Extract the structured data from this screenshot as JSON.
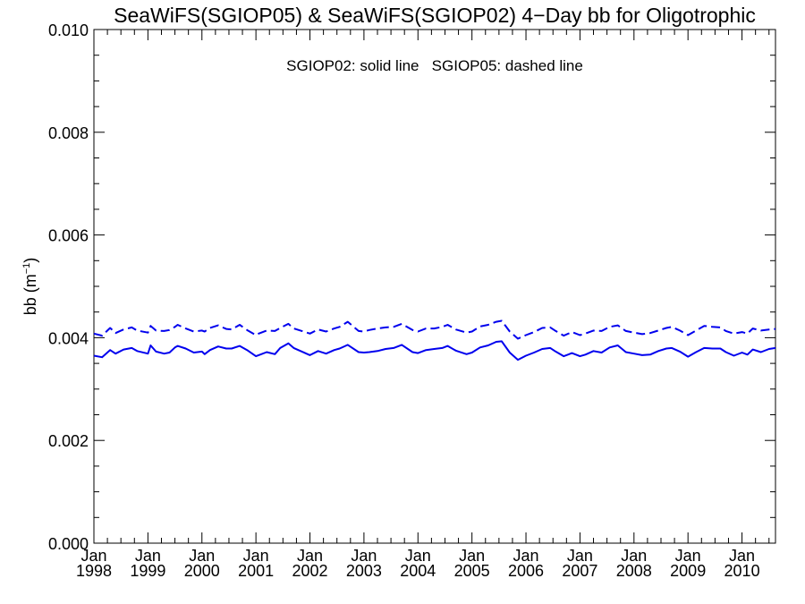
{
  "colors": {
    "series": "#0000ee",
    "axis": "#000000",
    "background": "#ffffff"
  },
  "chart_data": {
    "type": "line",
    "title": "SeaWiFS(SGIOP05) & SeaWiFS(SGIOP02) 4−Day bb for Oligotrophic",
    "xlabel": "",
    "ylabel": "bb (m",
    "ylabel_sup": "−1",
    "ylabel_close": ")",
    "annotation": "SGIOP02: solid line   SGIOP05: dashed line",
    "xlim": [
      1998.0,
      2010.62
    ],
    "ylim": [
      0.0,
      0.01
    ],
    "yticks": [
      "0.000",
      "0.002",
      "0.004",
      "0.006",
      "0.008",
      "0.010"
    ],
    "xticks": [
      {
        "month": "Jan",
        "year": "1998"
      },
      {
        "month": "Jan",
        "year": "1999"
      },
      {
        "month": "Jan",
        "year": "2000"
      },
      {
        "month": "Jan",
        "year": "2001"
      },
      {
        "month": "Jan",
        "year": "2002"
      },
      {
        "month": "Jan",
        "year": "2003"
      },
      {
        "month": "Jan",
        "year": "2004"
      },
      {
        "month": "Jan",
        "year": "2005"
      },
      {
        "month": "Jan",
        "year": "2006"
      },
      {
        "month": "Jan",
        "year": "2007"
      },
      {
        "month": "Jan",
        "year": "2008"
      },
      {
        "month": "Jan",
        "year": "2009"
      },
      {
        "month": "Jan",
        "year": "2010"
      }
    ],
    "grid": false,
    "series": [
      {
        "name": "SGIOP02",
        "style": "solid",
        "x": [
          1998.0,
          1998.15,
          1998.3,
          1998.4,
          1998.55,
          1998.7,
          1998.8,
          1999.0,
          1999.05,
          1999.15,
          1999.3,
          1999.4,
          1999.5,
          1999.55,
          1999.7,
          1999.85,
          2000.0,
          2000.05,
          2000.15,
          2000.3,
          2000.45,
          2000.55,
          2000.7,
          2000.85,
          2001.0,
          2001.05,
          2001.2,
          2001.35,
          2001.45,
          2001.6,
          2001.7,
          2001.85,
          2002.0,
          2002.15,
          2002.3,
          2002.45,
          2002.55,
          2002.7,
          2002.9,
          2003.0,
          2003.1,
          2003.25,
          2003.4,
          2003.55,
          2003.7,
          2003.9,
          2004.0,
          2004.15,
          2004.3,
          2004.45,
          2004.55,
          2004.7,
          2004.9,
          2005.0,
          2005.15,
          2005.3,
          2005.45,
          2005.55,
          2005.7,
          2005.85,
          2006.0,
          2006.15,
          2006.3,
          2006.45,
          2006.55,
          2006.7,
          2006.85,
          2007.0,
          2007.1,
          2007.25,
          2007.4,
          2007.55,
          2007.7,
          2007.85,
          2008.0,
          2008.15,
          2008.3,
          2008.45,
          2008.6,
          2008.7,
          2008.85,
          2009.0,
          2009.15,
          2009.3,
          2009.45,
          2009.6,
          2009.7,
          2009.85,
          2010.0,
          2010.1,
          2010.2,
          2010.35,
          2010.5,
          2010.62
        ],
        "y": [
          0.00365,
          0.00362,
          0.00376,
          0.00369,
          0.00377,
          0.0038,
          0.00374,
          0.00369,
          0.00385,
          0.00373,
          0.00369,
          0.00371,
          0.00381,
          0.00384,
          0.00379,
          0.00371,
          0.00373,
          0.00368,
          0.00376,
          0.00383,
          0.00379,
          0.00379,
          0.00384,
          0.00375,
          0.00364,
          0.00366,
          0.00372,
          0.00368,
          0.0038,
          0.00389,
          0.0038,
          0.00373,
          0.00366,
          0.00374,
          0.00369,
          0.00376,
          0.00379,
          0.00386,
          0.00372,
          0.00371,
          0.00372,
          0.00374,
          0.00378,
          0.0038,
          0.00386,
          0.00372,
          0.0037,
          0.00376,
          0.00378,
          0.0038,
          0.00384,
          0.00375,
          0.00368,
          0.00371,
          0.00381,
          0.00385,
          0.00392,
          0.00393,
          0.00371,
          0.00357,
          0.00365,
          0.00371,
          0.00378,
          0.0038,
          0.00373,
          0.00364,
          0.0037,
          0.00364,
          0.00367,
          0.00374,
          0.00371,
          0.00381,
          0.00385,
          0.00372,
          0.00369,
          0.00366,
          0.00367,
          0.00374,
          0.00379,
          0.0038,
          0.00373,
          0.00363,
          0.00372,
          0.0038,
          0.00379,
          0.00379,
          0.00372,
          0.00365,
          0.00371,
          0.00367,
          0.00377,
          0.00372,
          0.00378,
          0.0038
        ]
      },
      {
        "name": "SGIOP05",
        "style": "dashed",
        "x": [
          1998.0,
          1998.15,
          1998.3,
          1998.4,
          1998.55,
          1998.7,
          1998.8,
          1999.0,
          1999.05,
          1999.15,
          1999.3,
          1999.4,
          1999.5,
          1999.55,
          1999.7,
          1999.85,
          2000.0,
          2000.05,
          2000.15,
          2000.3,
          2000.45,
          2000.55,
          2000.7,
          2000.85,
          2001.0,
          2001.05,
          2001.2,
          2001.35,
          2001.45,
          2001.6,
          2001.7,
          2001.85,
          2002.0,
          2002.15,
          2002.3,
          2002.45,
          2002.55,
          2002.7,
          2002.9,
          2003.0,
          2003.1,
          2003.25,
          2003.4,
          2003.55,
          2003.7,
          2003.9,
          2004.0,
          2004.15,
          2004.3,
          2004.45,
          2004.55,
          2004.7,
          2004.9,
          2005.0,
          2005.15,
          2005.3,
          2005.45,
          2005.55,
          2005.7,
          2005.85,
          2006.0,
          2006.15,
          2006.3,
          2006.45,
          2006.55,
          2006.7,
          2006.85,
          2007.0,
          2007.1,
          2007.25,
          2007.4,
          2007.55,
          2007.7,
          2007.85,
          2008.0,
          2008.15,
          2008.3,
          2008.45,
          2008.6,
          2008.7,
          2008.85,
          2009.0,
          2009.15,
          2009.3,
          2009.45,
          2009.6,
          2009.7,
          2009.85,
          2010.0,
          2010.1,
          2010.2,
          2010.35,
          2010.5,
          2010.62
        ],
        "y": [
          0.00408,
          0.00404,
          0.00419,
          0.00409,
          0.00416,
          0.0042,
          0.00414,
          0.0041,
          0.00423,
          0.00414,
          0.00413,
          0.00415,
          0.00421,
          0.00425,
          0.00418,
          0.00412,
          0.00414,
          0.00412,
          0.00419,
          0.00424,
          0.00417,
          0.00416,
          0.00425,
          0.00414,
          0.00405,
          0.00408,
          0.00414,
          0.00413,
          0.00419,
          0.00427,
          0.00418,
          0.00413,
          0.00408,
          0.00416,
          0.00412,
          0.00418,
          0.00421,
          0.00431,
          0.00413,
          0.00412,
          0.00415,
          0.00418,
          0.0042,
          0.00421,
          0.00427,
          0.00415,
          0.00412,
          0.00418,
          0.00418,
          0.00421,
          0.00425,
          0.00416,
          0.0041,
          0.00412,
          0.00422,
          0.00425,
          0.00431,
          0.00433,
          0.00412,
          0.00398,
          0.00405,
          0.00411,
          0.00419,
          0.0042,
          0.00413,
          0.00404,
          0.00411,
          0.00405,
          0.00408,
          0.00414,
          0.00413,
          0.00421,
          0.00424,
          0.00413,
          0.0041,
          0.00407,
          0.00409,
          0.00414,
          0.00419,
          0.00421,
          0.00414,
          0.00405,
          0.00414,
          0.00423,
          0.00421,
          0.0042,
          0.00413,
          0.00408,
          0.00411,
          0.00408,
          0.00418,
          0.00414,
          0.00416,
          0.00417
        ]
      }
    ]
  }
}
